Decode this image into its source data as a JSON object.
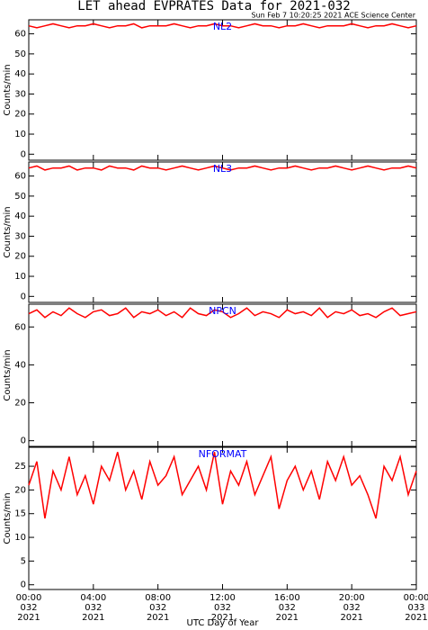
{
  "title": "LET ahead EVPRATES Data for 2021-032",
  "subtitle": "Sun Feb  7 10:20:25 2021 ACE Science Center",
  "chart_data": [
    {
      "type": "line",
      "ylabel": "Counts/min",
      "ylim": [
        -3,
        67
      ],
      "yticks": [
        0,
        10,
        20,
        30,
        40,
        50,
        60
      ],
      "xlim": [
        0,
        24
      ],
      "xticks": [
        0,
        4,
        8,
        12,
        16,
        20,
        24
      ],
      "x": [
        0,
        0.5,
        1,
        1.5,
        2,
        2.5,
        3,
        3.5,
        4,
        4.5,
        5,
        5.5,
        6,
        6.5,
        7,
        7.5,
        8,
        8.5,
        9,
        9.5,
        10,
        10.5,
        11,
        11.5,
        12,
        12.5,
        13,
        13.5,
        14,
        14.5,
        15,
        15.5,
        16,
        16.5,
        17,
        17.5,
        18,
        18.5,
        19,
        19.5,
        20,
        20.5,
        21,
        21.5,
        22,
        22.5,
        23,
        23.5,
        24
      ],
      "series": [
        {
          "name": "NL2",
          "color": "#ff0000",
          "values": [
            64,
            63,
            64,
            65,
            64,
            63,
            64,
            64,
            65,
            64,
            63,
            64,
            64,
            65,
            63,
            64,
            64,
            64,
            65,
            64,
            63,
            64,
            64,
            65,
            64,
            64,
            63,
            64,
            65,
            64,
            64,
            63,
            64,
            64,
            65,
            64,
            63,
            64,
            64,
            64,
            65,
            64,
            63,
            64,
            64,
            65,
            64,
            63,
            64
          ]
        }
      ]
    },
    {
      "type": "line",
      "ylabel": "Counts/min",
      "ylim": [
        -3,
        67
      ],
      "yticks": [
        0,
        10,
        20,
        30,
        40,
        50,
        60
      ],
      "xlim": [
        0,
        24
      ],
      "xticks": [
        0,
        4,
        8,
        12,
        16,
        20,
        24
      ],
      "x": [
        0,
        0.5,
        1,
        1.5,
        2,
        2.5,
        3,
        3.5,
        4,
        4.5,
        5,
        5.5,
        6,
        6.5,
        7,
        7.5,
        8,
        8.5,
        9,
        9.5,
        10,
        10.5,
        11,
        11.5,
        12,
        12.5,
        13,
        13.5,
        14,
        14.5,
        15,
        15.5,
        16,
        16.5,
        17,
        17.5,
        18,
        18.5,
        19,
        19.5,
        20,
        20.5,
        21,
        21.5,
        22,
        22.5,
        23,
        23.5,
        24
      ],
      "series": [
        {
          "name": "NL3",
          "color": "#ff0000",
          "values": [
            64,
            65,
            63,
            64,
            64,
            65,
            63,
            64,
            64,
            63,
            65,
            64,
            64,
            63,
            65,
            64,
            64,
            63,
            64,
            65,
            64,
            63,
            64,
            65,
            64,
            63,
            64,
            64,
            65,
            64,
            63,
            64,
            64,
            65,
            64,
            63,
            64,
            64,
            65,
            64,
            63,
            64,
            65,
            64,
            63,
            64,
            64,
            65,
            64
          ]
        }
      ]
    },
    {
      "type": "line",
      "ylabel": "Counts/min",
      "ylim": [
        -3,
        72
      ],
      "yticks": [
        0,
        20,
        40,
        60
      ],
      "xlim": [
        0,
        24
      ],
      "xticks": [
        0,
        4,
        8,
        12,
        16,
        20,
        24
      ],
      "x": [
        0,
        0.5,
        1,
        1.5,
        2,
        2.5,
        3,
        3.5,
        4,
        4.5,
        5,
        5.5,
        6,
        6.5,
        7,
        7.5,
        8,
        8.5,
        9,
        9.5,
        10,
        10.5,
        11,
        11.5,
        12,
        12.5,
        13,
        13.5,
        14,
        14.5,
        15,
        15.5,
        16,
        16.5,
        17,
        17.5,
        18,
        18.5,
        19,
        19.5,
        20,
        20.5,
        21,
        21.5,
        22,
        22.5,
        23,
        23.5,
        24
      ],
      "series": [
        {
          "name": "NPCN",
          "color": "#ff0000",
          "values": [
            67,
            69,
            65,
            68,
            66,
            70,
            67,
            65,
            68,
            69,
            66,
            67,
            70,
            65,
            68,
            67,
            69,
            66,
            68,
            65,
            70,
            67,
            66,
            69,
            68,
            65,
            67,
            70,
            66,
            68,
            67,
            65,
            69,
            67,
            68,
            66,
            70,
            65,
            68,
            67,
            69,
            66,
            67,
            65,
            68,
            70,
            66,
            67,
            68
          ]
        }
      ]
    },
    {
      "type": "line",
      "ylabel": "Counts/min",
      "xlabel": "UTC Day of Year",
      "ylim": [
        -1,
        29
      ],
      "yticks": [
        0,
        5,
        10,
        15,
        20,
        25
      ],
      "xlim": [
        0,
        24
      ],
      "xticks": [
        {
          "value": 0,
          "label": "00:00"
        },
        {
          "value": 4,
          "label": "04:00"
        },
        {
          "value": 8,
          "label": "08:00"
        },
        {
          "value": 12,
          "label": "12:00"
        },
        {
          "value": 16,
          "label": "16:00"
        },
        {
          "value": 20,
          "label": "20:00"
        },
        {
          "value": 24,
          "label": "00:00"
        }
      ],
      "xtick_day": [
        "032",
        "032",
        "032",
        "032",
        "032",
        "032",
        "033"
      ],
      "xtick_year": [
        "2021",
        "2021",
        "2021",
        "2021",
        "2021",
        "2021",
        "2021"
      ],
      "x": [
        0,
        0.5,
        1,
        1.5,
        2,
        2.5,
        3,
        3.5,
        4,
        4.5,
        5,
        5.5,
        6,
        6.5,
        7,
        7.5,
        8,
        8.5,
        9,
        9.5,
        10,
        10.5,
        11,
        11.5,
        12,
        12.5,
        13,
        13.5,
        14,
        14.5,
        15,
        15.5,
        16,
        16.5,
        17,
        17.5,
        18,
        18.5,
        19,
        19.5,
        20,
        20.5,
        21,
        21.5,
        22,
        22.5,
        23,
        23.5,
        24
      ],
      "series": [
        {
          "name": "NFORMAT",
          "color": "#ff0000",
          "values": [
            21,
            26,
            14,
            24,
            20,
            27,
            19,
            23,
            17,
            25,
            22,
            28,
            20,
            24,
            18,
            26,
            21,
            23,
            27,
            19,
            22,
            25,
            20,
            28,
            17,
            24,
            21,
            26,
            19,
            23,
            27,
            16,
            22,
            25,
            20,
            24,
            18,
            26,
            22,
            27,
            21,
            23,
            19,
            14,
            25,
            22,
            27,
            19,
            24
          ]
        }
      ]
    }
  ]
}
